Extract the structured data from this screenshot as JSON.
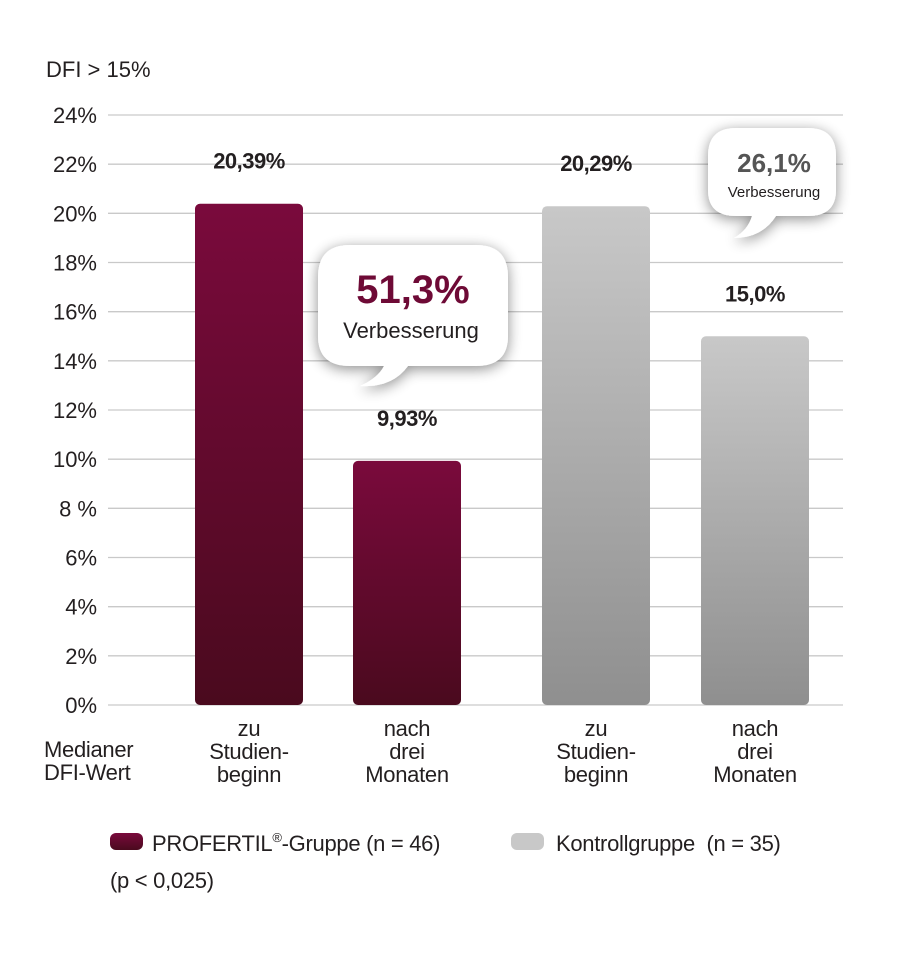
{
  "chart_data": {
    "type": "bar",
    "ylabel": "DFI > 15%",
    "ylim": [
      0,
      24
    ],
    "yticks": [
      {
        "v": 24,
        "label": "24%"
      },
      {
        "v": 22,
        "label": "22%"
      },
      {
        "v": 20,
        "label": "20%"
      },
      {
        "v": 18,
        "label": "18%"
      },
      {
        "v": 16,
        "label": "16%"
      },
      {
        "v": 14,
        "label": "14%"
      },
      {
        "v": 12,
        "label": "12%"
      },
      {
        "v": 10,
        "label": "10%"
      },
      {
        "v": 8,
        "label": "8 %"
      },
      {
        "v": 6,
        "label": "6%"
      },
      {
        "v": 4,
        "label": "4%"
      },
      {
        "v": 2,
        "label": "2%"
      },
      {
        "v": 0,
        "label": "0%"
      }
    ],
    "row_label": [
      "Medianer",
      "DFI-Wert"
    ],
    "grid": true,
    "bars": [
      {
        "group": "profertil",
        "category": [
          "zu",
          "Studien-",
          "beginn"
        ],
        "value": 20.39,
        "label": "20,39%"
      },
      {
        "group": "profertil",
        "category": [
          "nach",
          "drei",
          "Monaten"
        ],
        "value": 9.93,
        "label": "9,93%"
      },
      {
        "group": "kontroll",
        "category": [
          "zu",
          "Studien-",
          "beginn"
        ],
        "value": 20.29,
        "label": "20,29%"
      },
      {
        "group": "kontroll",
        "category": [
          "nach",
          "drei",
          "Monaten"
        ],
        "value": 15.0,
        "label": "15,0%"
      }
    ],
    "annotations": [
      {
        "group": "profertil",
        "value": "51,3%",
        "text": "Verbesserung"
      },
      {
        "group": "kontroll",
        "value": "26,1%",
        "text": "Verbesserung"
      }
    ],
    "legend": {
      "placement": "bottom",
      "items": [
        {
          "name": "PROFERTIL",
          "sup": "®",
          "suffix": "-Gruppe (n = 46)",
          "note": "(p < 0,025)",
          "color": "#7a0a3c"
        },
        {
          "name": "Kontrollgruppe  (n = 35)",
          "color": "#c8c8c8"
        }
      ]
    },
    "colors": {
      "profertil_top": "#7a0a3c",
      "profertil_bottom": "#4a0a1e",
      "kontroll_top": "#c8c8c8",
      "kontroll_bottom": "#8f8f8f",
      "grid": "#c9c9c9",
      "text": "#231f20",
      "accent": "#6e0a36",
      "grey_text": "#555555"
    }
  }
}
